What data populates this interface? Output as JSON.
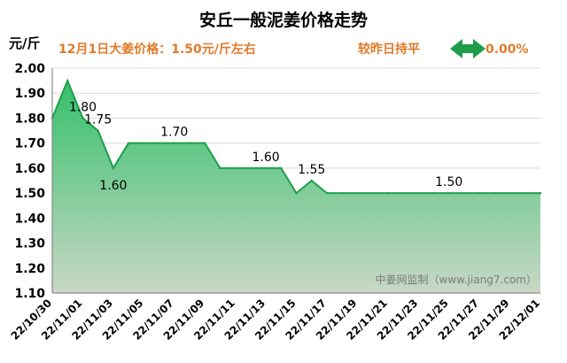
{
  "chart_data": {
    "type": "area",
    "title": "安丘一般泥姜价格走势",
    "subtitle": "12月1日大姜价格：1.50元/斤左右",
    "change_text": "较昨日持平",
    "change_value": "0.00%",
    "ylabel": "元/斤",
    "ylim": [
      1.1,
      2.0
    ],
    "yticks": [
      "1.10",
      "1.20",
      "1.30",
      "1.40",
      "1.50",
      "1.60",
      "1.70",
      "1.80",
      "1.90",
      "2.00"
    ],
    "xticks": [
      "22/10/30",
      "22/11/01",
      "22/11/03",
      "22/11/05",
      "22/11/07",
      "22/11/09",
      "22/11/11",
      "22/11/13",
      "22/11/15",
      "22/11/17",
      "22/11/19",
      "22/11/21",
      "22/11/23",
      "22/11/25",
      "22/11/27",
      "22/11/29",
      "22/12/01"
    ],
    "dates": [
      "22/10/30",
      "22/10/31",
      "22/11/01",
      "22/11/02",
      "22/11/03",
      "22/11/04",
      "22/11/05",
      "22/11/06",
      "22/11/07",
      "22/11/08",
      "22/11/09",
      "22/11/10",
      "22/11/11",
      "22/11/12",
      "22/11/13",
      "22/11/14",
      "22/11/15",
      "22/11/16",
      "22/11/17",
      "22/11/18",
      "22/11/19",
      "22/11/20",
      "22/11/21",
      "22/11/22",
      "22/11/23",
      "22/11/24",
      "22/11/25",
      "22/11/26",
      "22/11/27",
      "22/11/28",
      "22/11/29",
      "22/11/30",
      "22/12/01"
    ],
    "values": [
      1.8,
      1.95,
      1.8,
      1.75,
      1.6,
      1.7,
      1.7,
      1.7,
      1.7,
      1.7,
      1.7,
      1.6,
      1.6,
      1.6,
      1.6,
      1.6,
      1.5,
      1.55,
      1.5,
      1.5,
      1.5,
      1.5,
      1.5,
      1.5,
      1.5,
      1.5,
      1.5,
      1.5,
      1.5,
      1.5,
      1.5,
      1.5,
      1.5
    ],
    "data_labels": [
      {
        "index": 2,
        "text": "1.80",
        "pos": "above"
      },
      {
        "index": 3,
        "text": "1.75",
        "pos": "above"
      },
      {
        "index": 4,
        "text": "1.60",
        "pos": "below"
      },
      {
        "index": 8,
        "text": "1.70",
        "pos": "above"
      },
      {
        "index": 14,
        "text": "1.60",
        "pos": "above"
      },
      {
        "index": 17,
        "text": "1.55",
        "pos": "above"
      },
      {
        "index": 26,
        "text": "1.50",
        "pos": "above"
      }
    ],
    "watermark": "中姜网监制（www.jiang7.com）",
    "grid": true,
    "colors": {
      "line": "#1f9e4a",
      "area_top": "#34c06a",
      "area_bottom": "#c9d8c6",
      "title": "#000000",
      "subtitle": "#e07b2a",
      "arrow": "#1f9e4a",
      "watermark": "#7a7a7a"
    }
  }
}
